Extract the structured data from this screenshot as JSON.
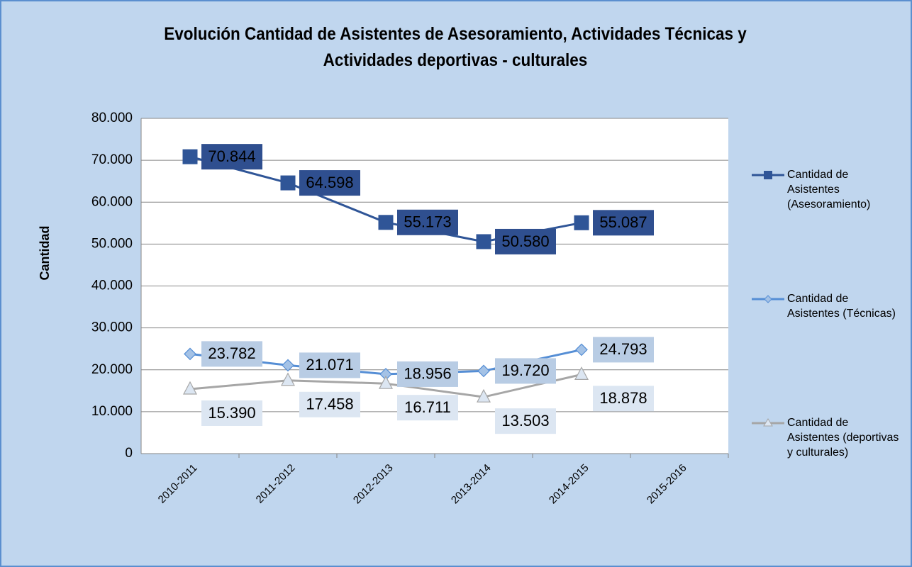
{
  "chart_data": {
    "type": "line",
    "title": "Evolución Cantidad de Asistentes de Asesoramiento, Actividades Técnicas y Actividades deportivas - culturales",
    "ylabel": "Cantidad",
    "categories": [
      "2010-2011",
      "2011-2012",
      "2012-2013",
      "2013-2014",
      "2014-2015",
      "2015-2016"
    ],
    "series": [
      {
        "name": "Cantidad de Asistentes (Asesoramiento)",
        "color": "#2f5597",
        "marker": "square",
        "values": [
          70844,
          64598,
          55173,
          50580,
          55087,
          null
        ],
        "value_labels": [
          "70.844",
          "64.598",
          "55.173",
          "50.580",
          "55.087",
          null
        ]
      },
      {
        "name": "Cantidad de Asistentes (Técnicas)",
        "color": "#558ed5",
        "marker": "diamond",
        "values": [
          23782,
          21071,
          18956,
          19720,
          24793,
          null
        ],
        "value_labels": [
          "23.782",
          "21.071",
          "18.956",
          "19.720",
          "24.793",
          null
        ]
      },
      {
        "name": "Cantidad de Asistentes (deportivas y culturales)",
        "color": "#a6a6a6",
        "marker": "triangle",
        "values": [
          15390,
          17458,
          16711,
          13503,
          18878,
          null
        ],
        "value_labels": [
          "15.390",
          "17.458",
          "16.711",
          "13.503",
          "18.878",
          null
        ]
      }
    ],
    "ylim": [
      0,
      80000
    ],
    "yticks": [
      0,
      {
        "value": 10000,
        "label": "10.000"
      },
      {
        "value": 20000,
        "label": "20.000"
      },
      {
        "value": 30000,
        "label": "30.000"
      },
      {
        "value": 40000,
        "label": "40.000"
      },
      {
        "value": 50000,
        "label": "50.000"
      },
      {
        "value": 60000,
        "label": "60.000"
      },
      {
        "value": 70000,
        "label": "70.000"
      },
      {
        "value": 80000,
        "label": "80.000"
      }
    ],
    "grid": true,
    "legend": "right"
  }
}
